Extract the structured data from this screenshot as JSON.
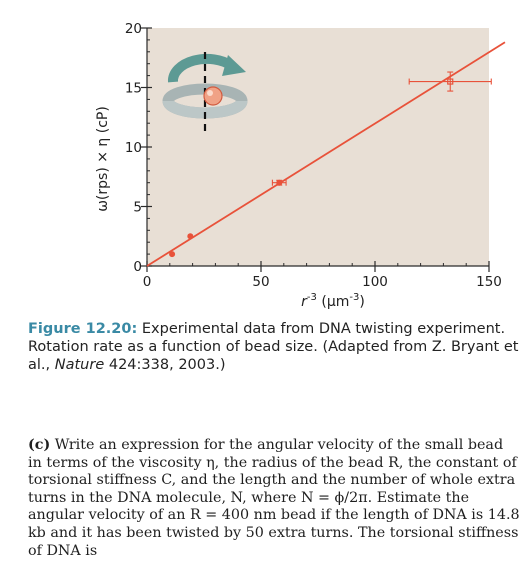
{
  "chart_data": {
    "type": "scatter",
    "xlabel": "r^-3 (µm^-3)",
    "ylabel": "ω(rps) × η (cP)",
    "xlim": [
      0,
      150
    ],
    "ylim": [
      0,
      20
    ],
    "xticks": [
      "0",
      "50",
      "100",
      "150"
    ],
    "yticks": [
      "0",
      "5",
      "10",
      "15",
      "20"
    ],
    "points": [
      {
        "x": 11,
        "y": 1.0
      },
      {
        "x": 19,
        "y": 2.5
      },
      {
        "x": 58,
        "y": 7.0,
        "xerr": 3,
        "yerr": 0.2
      },
      {
        "x": 133,
        "y": 15.5,
        "xerr": 18,
        "yerr": 0.8
      }
    ],
    "fit_line": {
      "x": [
        0,
        157
      ],
      "y": [
        0,
        18.8
      ]
    },
    "colors": {
      "background": "#e8dfd5",
      "data": "#e8523a",
      "axis": "#2a2a2a",
      "arrow": "#5d9a94"
    },
    "inset_icon": "rotating-bead-icon"
  },
  "caption": {
    "label": "Figure 12.20:",
    "text": " Experimental data from DNA twisting experiment. Rotation rate as a function of bead size. (Adapted from Z. Bryant et al., ",
    "journal": "Nature",
    "citation_end": " 424:338, 2003.)"
  },
  "problem": {
    "tag": "(c)",
    "text": " Write an expression for the angular velocity of the small bead in terms of the viscosity η, the radius of the bead R, the constant of torsional stiffness C, and the length and the number of whole extra turns in the DNA molecule, N, where N = ϕ/2π. Estimate the angular velocity of an R = 400 nm bead if the length of DNA is 14.8 kb and it has been twisted by 50 extra turns. The torsional stiffness of DNA is"
  }
}
